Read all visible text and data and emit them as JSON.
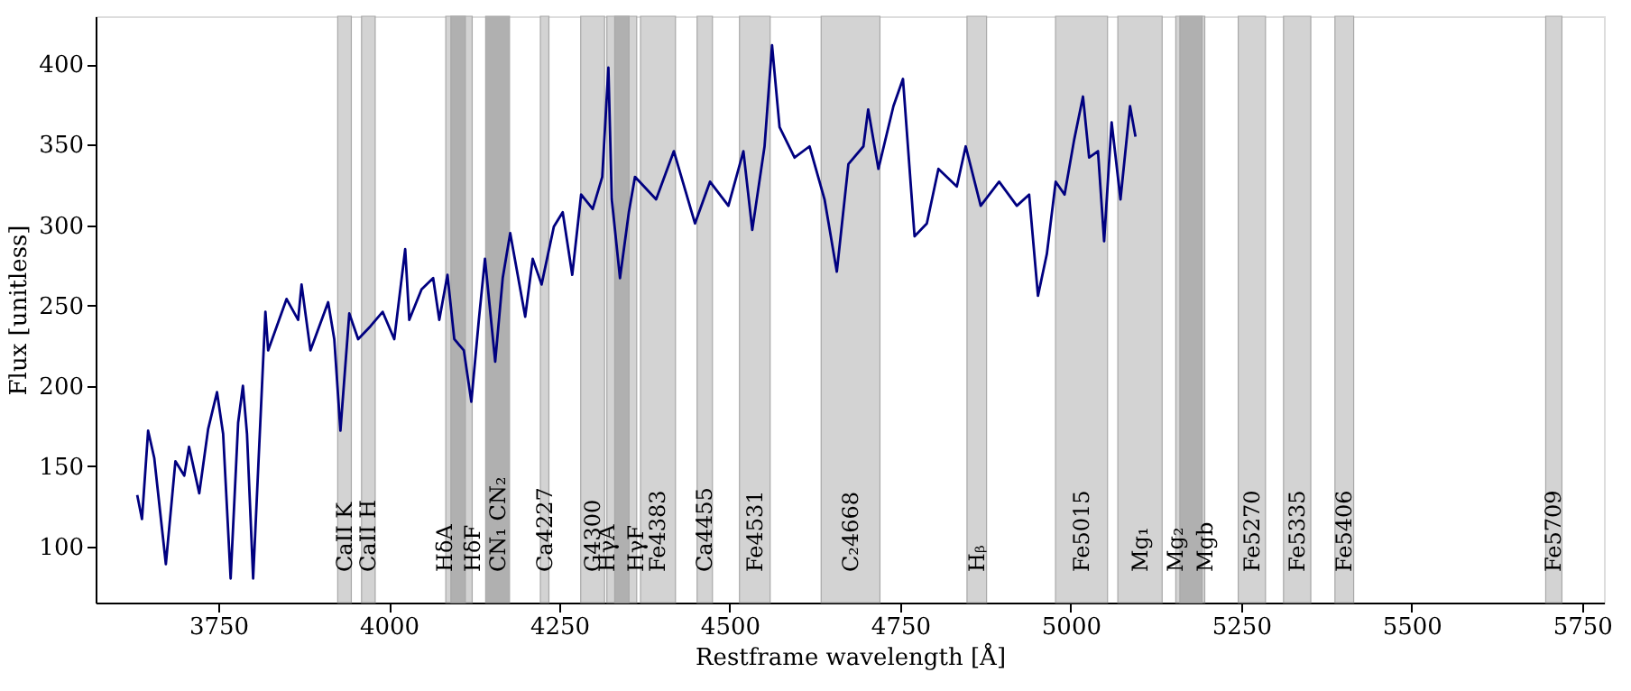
{
  "chart_data": {
    "type": "line",
    "xlabel": "Restframe wavelength [Å]",
    "ylabel": "Flux [unitless]",
    "xlim": [
      3570,
      5782
    ],
    "xticks": [
      3750,
      4000,
      4250,
      4500,
      4750,
      5000,
      5250,
      5500,
      5750
    ],
    "ylim": [
      65,
      430
    ],
    "yticks": [
      100,
      150,
      200,
      250,
      300,
      350,
      400
    ],
    "grid": false,
    "series": [
      {
        "color": "#000080",
        "x": [
          3631,
          3638,
          3647,
          3656,
          3673,
          3687,
          3700,
          3707,
          3722,
          3735,
          3748,
          3757,
          3768,
          3779,
          3786,
          3792,
          3801,
          3814,
          3819,
          3823,
          3850,
          3867,
          3872,
          3885,
          3898,
          3911,
          3920,
          3929,
          3942,
          3955,
          3973,
          3991,
          4008,
          4024,
          4030,
          4048,
          4065,
          4074,
          4086,
          4096,
          4110,
          4121,
          4132,
          4141,
          4156,
          4167,
          4178,
          4200,
          4211,
          4224,
          4242,
          4255,
          4269,
          4282,
          4299,
          4313,
          4322,
          4327,
          4339,
          4352,
          4361,
          4392,
          4418,
          4449,
          4471,
          4498,
          4520,
          4533,
          4551,
          4562,
          4573,
          4595,
          4617,
          4639,
          4657,
          4674,
          4696,
          4703,
          4718,
          4740,
          4754,
          4771,
          4789,
          4806,
          4833,
          4846,
          4868,
          4895,
          4921,
          4939,
          4952,
          4965,
          4978,
          4991,
          5005,
          5018,
          5027,
          5040,
          5049,
          5060,
          5073,
          5087,
          5095
        ],
        "values": [
          132,
          117,
          172,
          155,
          89,
          153,
          144,
          162,
          133,
          173,
          196,
          170,
          80,
          177,
          200,
          170,
          80,
          200,
          246,
          222,
          254,
          241,
          263,
          222,
          237,
          252,
          229,
          172,
          245,
          229,
          237,
          246,
          229,
          285,
          241,
          260,
          267,
          241,
          269,
          229,
          222,
          190,
          241,
          279,
          215,
          267,
          295,
          243,
          279,
          263,
          299,
          308,
          269,
          319,
          310,
          330,
          398,
          316,
          267,
          308,
          330,
          316,
          346,
          301,
          327,
          312,
          346,
          297,
          349,
          412,
          361,
          342,
          349,
          316,
          271,
          338,
          349,
          372,
          335,
          374,
          391,
          293,
          301,
          335,
          324,
          349,
          312,
          327,
          312,
          319,
          256,
          282,
          327,
          319,
          353,
          380,
          342,
          346,
          290,
          364,
          316,
          374,
          355
        ]
      }
    ],
    "bands": [
      {
        "axis": "x",
        "from": 3925,
        "to": 3945,
        "label": "CaII K",
        "color": "#d3d3d3"
      },
      {
        "axis": "x",
        "from": 3960,
        "to": 3980,
        "label": "CaII H",
        "color": "#d3d3d3"
      },
      {
        "axis": "x",
        "from": 4083.5,
        "to": 4122.25,
        "label": "HδA",
        "color": "#d3d3d3"
      },
      {
        "axis": "x",
        "from": 4091,
        "to": 4112.25,
        "label": "HδF",
        "color": "#b0b0b0"
      },
      {
        "axis": "x",
        "from": 4142,
        "to": 4177,
        "label": "CN₁  CN₂",
        "color": "#b0b0b0"
      },
      {
        "axis": "x",
        "from": 4222.25,
        "to": 4234.75,
        "label": "Ca4227",
        "color": "#d3d3d3"
      },
      {
        "axis": "x",
        "from": 4281.4,
        "to": 4316.4,
        "label": "G4300",
        "color": "#d3d3d3"
      },
      {
        "axis": "x",
        "from": 4319.75,
        "to": 4363.5,
        "label": "HγA",
        "color": "#d3d3d3"
      },
      {
        "axis": "x",
        "from": 4331.25,
        "to": 4352.25,
        "label": "HγF",
        "color": "#b0b0b0"
      },
      {
        "axis": "x",
        "from": 4369.1,
        "to": 4420.4,
        "label": "Fe4383",
        "color": "#d3d3d3"
      },
      {
        "axis": "x",
        "from": 4452.1,
        "to": 4474.6,
        "label": "Ca4455",
        "color": "#d3d3d3"
      },
      {
        "axis": "x",
        "from": 4514.25,
        "to": 4559.25,
        "label": "Fe4531",
        "color": "#d3d3d3"
      },
      {
        "axis": "x",
        "from": 4634,
        "to": 4720.25,
        "label": "C₂4668",
        "color": "#d3d3d3"
      },
      {
        "axis": "x",
        "from": 4847.9,
        "to": 4876.6,
        "label": "Hᵦ",
        "color": "#d3d3d3"
      },
      {
        "axis": "x",
        "from": 4977.75,
        "to": 5054,
        "label": "Fe5015",
        "color": "#d3d3d3"
      },
      {
        "axis": "x",
        "from": 5069.1,
        "to": 5134.1,
        "label": "Mg₁",
        "color": "#d3d3d3"
      },
      {
        "axis": "x",
        "from": 5154.1,
        "to": 5196.6,
        "label": "Mg₂",
        "color": "#d3d3d3"
      },
      {
        "axis": "x",
        "from": 5160.1,
        "to": 5192.6,
        "label": "Mgb",
        "color": "#b0b0b0"
      },
      {
        "axis": "x",
        "from": 5245.65,
        "to": 5285.65,
        "label": "Fe5270",
        "color": "#d3d3d3"
      },
      {
        "axis": "x",
        "from": 5312.1,
        "to": 5352.1,
        "label": "Fe5335",
        "color": "#d3d3d3"
      },
      {
        "axis": "x",
        "from": 5387.5,
        "to": 5415,
        "label": "Fe5406",
        "color": "#d3d3d3"
      },
      {
        "axis": "x",
        "from": 5696.6,
        "to": 5720.4,
        "label": "Fe5709",
        "color": "#d3d3d3"
      }
    ]
  }
}
